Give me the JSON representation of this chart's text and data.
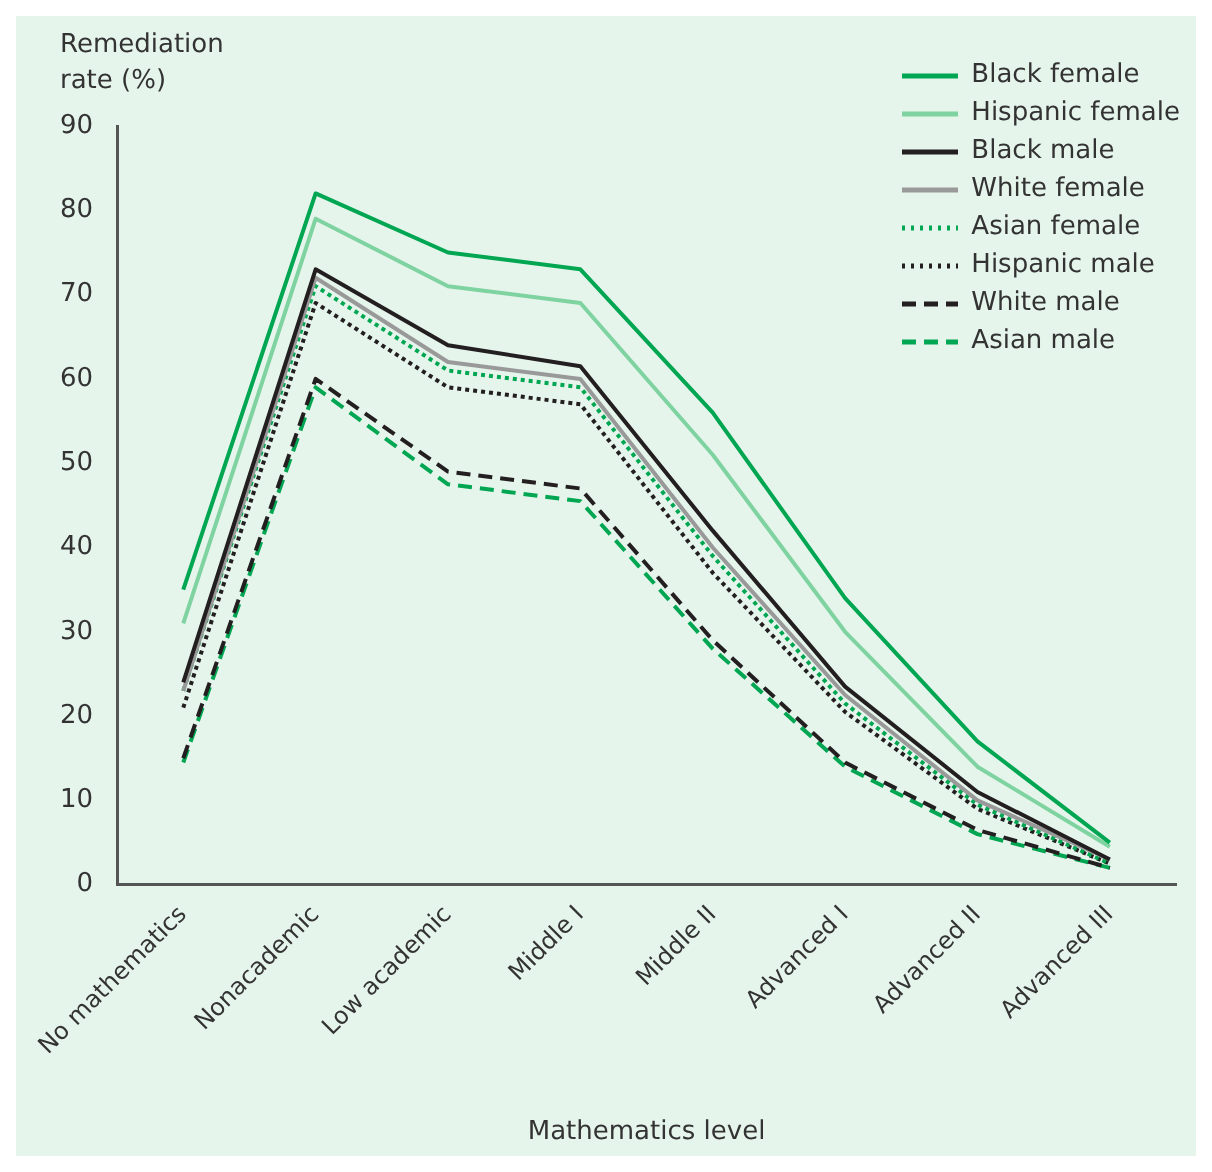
{
  "chart_data": {
    "type": "line",
    "ylabel": "Remediation rate (%)",
    "xlabel": "Mathematics level",
    "categories": [
      "No mathematics",
      "Nonacademic",
      "Low academic",
      "Middle I",
      "Middle II",
      "Advanced I",
      "Advanced II",
      "Advanced III"
    ],
    "series": [
      {
        "name": "Black female",
        "color": "#00a651",
        "line_style": "solid",
        "values": [
          35,
          82,
          75,
          73,
          56,
          34,
          17,
          5
        ]
      },
      {
        "name": "Hispanic female",
        "color": "#7fd3a0",
        "line_style": "solid",
        "values": [
          31,
          79,
          71,
          69,
          51,
          30,
          14,
          4.5
        ]
      },
      {
        "name": "Black male",
        "color": "#231f20",
        "line_style": "solid",
        "values": [
          24,
          73,
          64,
          61.5,
          42,
          23.5,
          11,
          3
        ]
      },
      {
        "name": "White female",
        "color": "#999999",
        "line_style": "solid",
        "values": [
          23,
          72,
          62,
          60,
          40,
          22.5,
          10,
          3
        ]
      },
      {
        "name": "Asian female",
        "color": "#00a651",
        "line_style": "dotted",
        "values": [
          23,
          71,
          61,
          59,
          39,
          21.5,
          9.5,
          2.5
        ]
      },
      {
        "name": "Hispanic male",
        "color": "#231f20",
        "line_style": "dotted",
        "values": [
          21,
          69,
          59,
          57,
          37,
          20.5,
          9,
          2.5
        ]
      },
      {
        "name": "White male",
        "color": "#231f20",
        "line_style": "dashed",
        "values": [
          15,
          60,
          49,
          47,
          29,
          14.5,
          6.5,
          2
        ]
      },
      {
        "name": "Asian male",
        "color": "#00a651",
        "line_style": "dashed",
        "values": [
          14.5,
          59,
          47.5,
          45.5,
          28,
          14,
          6,
          2
        ]
      }
    ],
    "ylim": [
      0,
      90
    ],
    "yticks": [
      0,
      10,
      20,
      30,
      40,
      50,
      60,
      70,
      80,
      90
    ],
    "grid": false,
    "legend": "top right",
    "marker": "none"
  }
}
